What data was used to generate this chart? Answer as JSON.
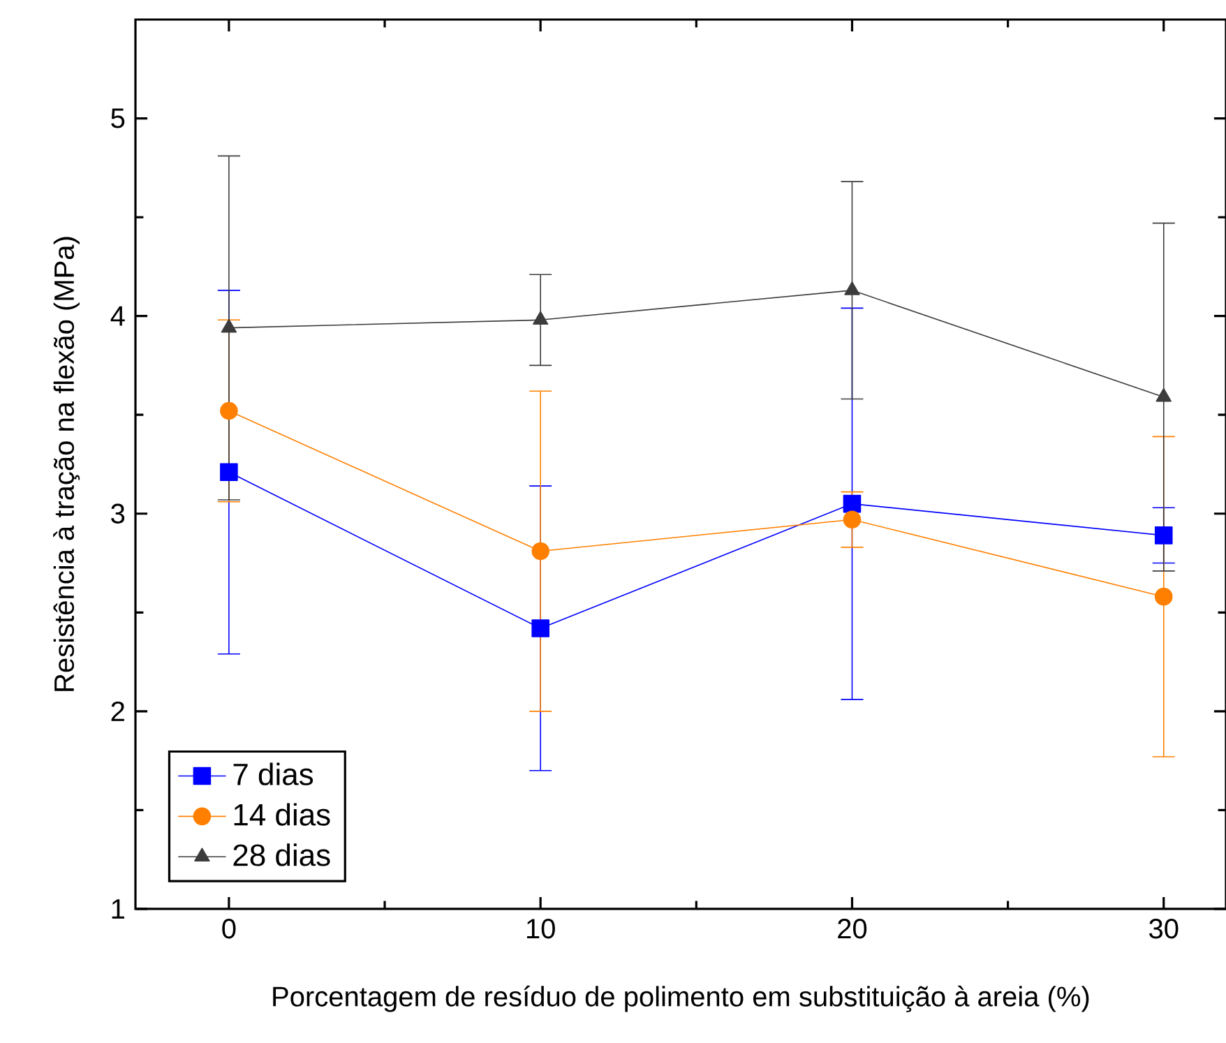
{
  "chart_data": {
    "type": "line",
    "xlabel": "Porcentagem de resíduo de polimento em substituição à areia (%)",
    "ylabel": "Resistência à tração na flexão (MPa)",
    "x": [
      0,
      10,
      20,
      30
    ],
    "xlim": [
      -3,
      32
    ],
    "xticks": [
      0,
      10,
      20,
      30
    ],
    "ylim": [
      1,
      5.5
    ],
    "yticks": [
      1,
      2,
      3,
      4,
      5
    ],
    "grid": false,
    "legend": "bottom left",
    "series": [
      {
        "name": "7 dias",
        "color": "#0000ff",
        "marker": "square",
        "values": [
          3.21,
          2.42,
          3.05,
          2.89
        ],
        "errors": [
          0.92,
          0.72,
          0.99,
          0.14
        ]
      },
      {
        "name": "14 dias",
        "color": "#ff8000",
        "marker": "circle",
        "values": [
          3.52,
          2.81,
          2.97,
          2.58
        ],
        "errors": [
          0.46,
          0.81,
          0.14,
          0.81
        ]
      },
      {
        "name": "28 dias",
        "color": "#3c3c3c",
        "marker": "triangle",
        "values": [
          3.94,
          3.98,
          4.13,
          3.59
        ],
        "errors": [
          0.87,
          0.23,
          0.55,
          0.88
        ]
      }
    ]
  }
}
